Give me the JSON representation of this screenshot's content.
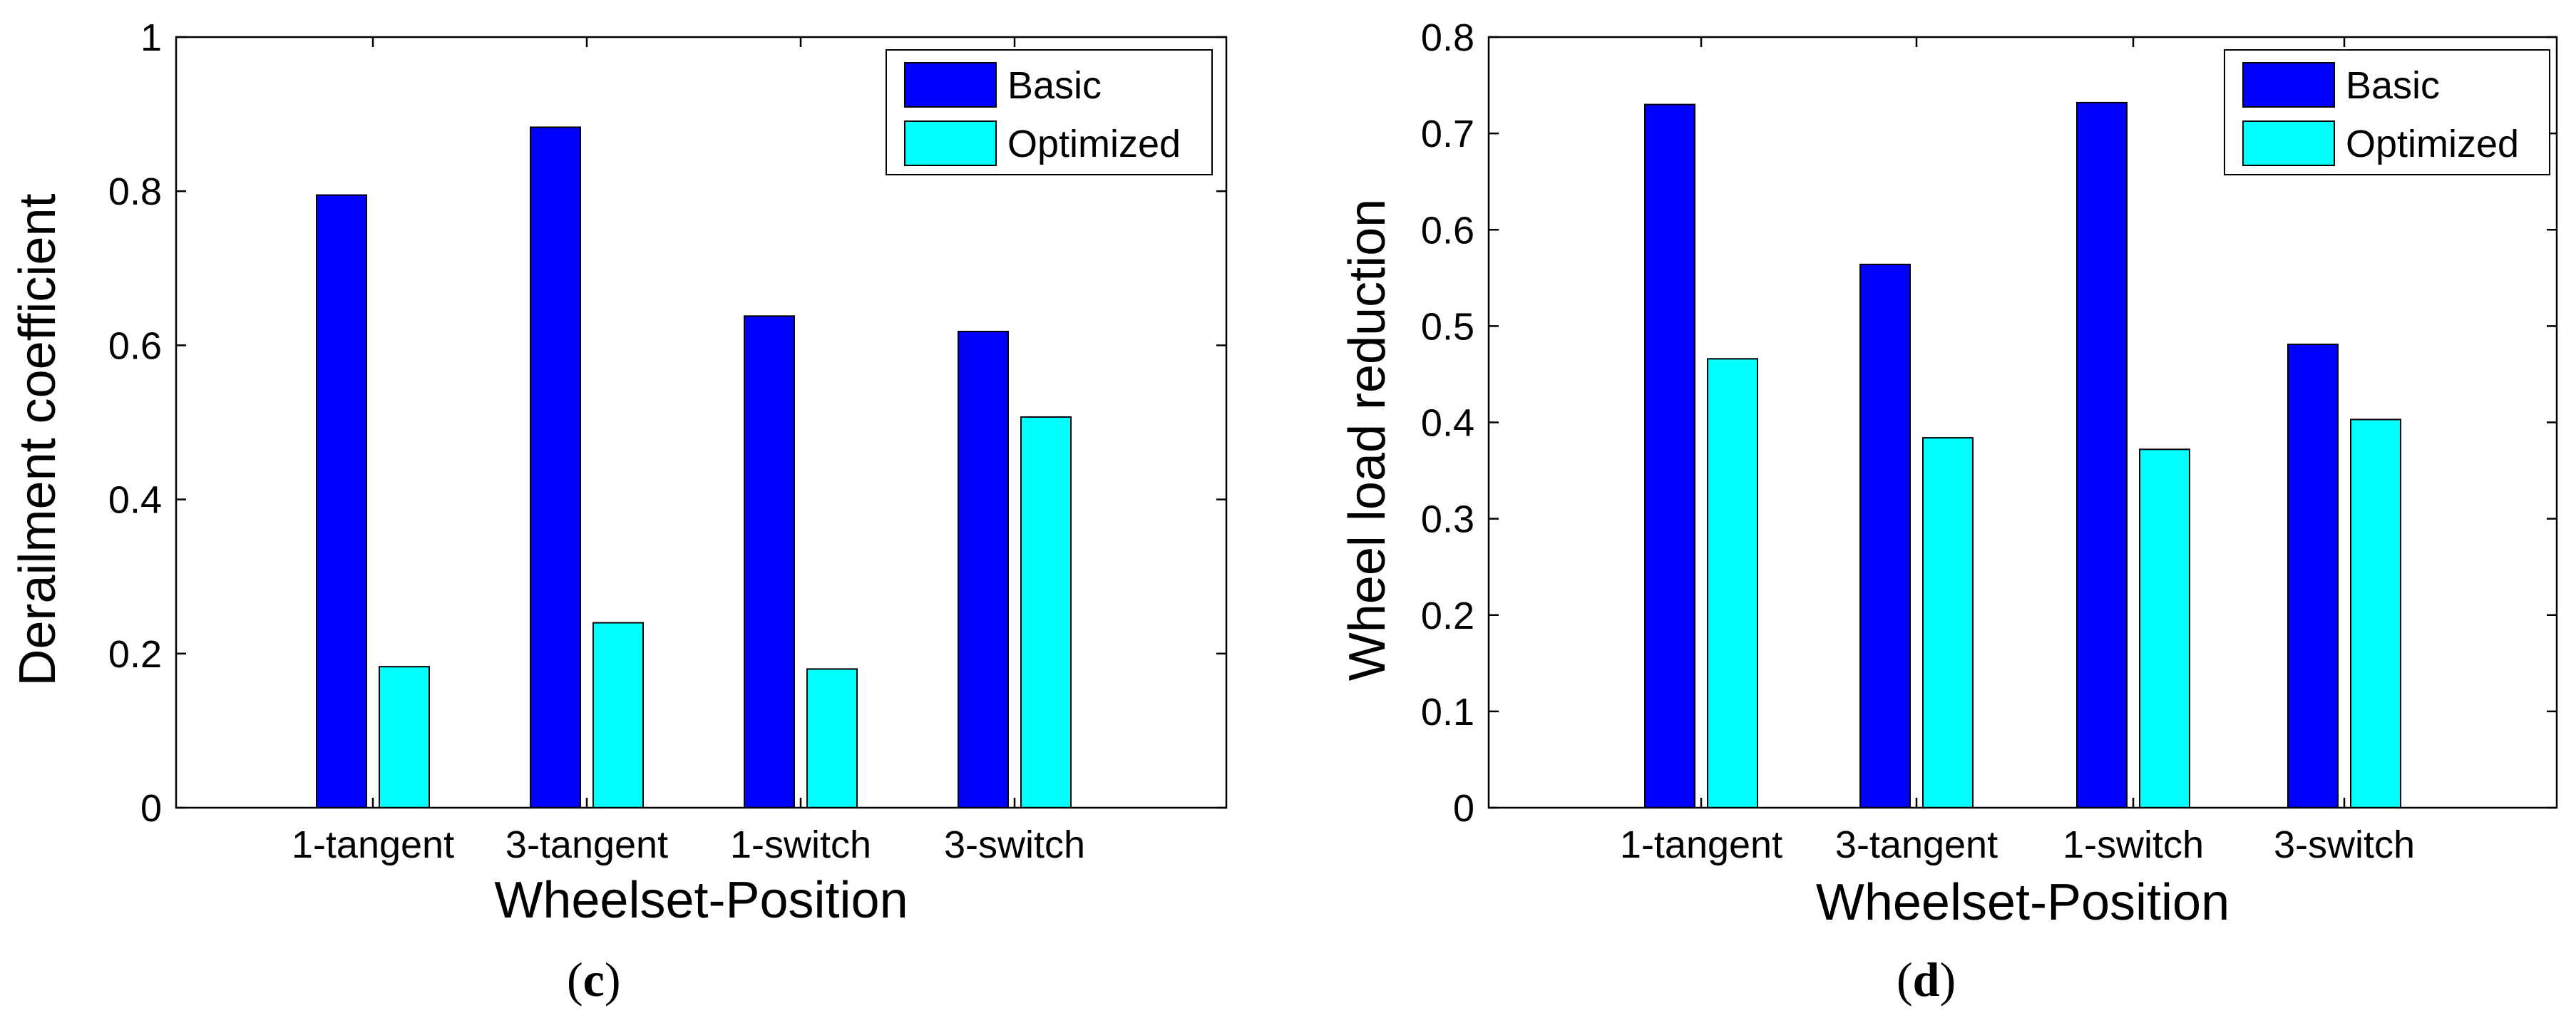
{
  "colors": {
    "basic": "#0000FF",
    "optimized": "#00FFFF",
    "axis": "#000000",
    "edge": "#000000"
  },
  "chart_data": [
    {
      "type": "bar",
      "panel_label": "c",
      "categories": [
        "1-tangent",
        "3-tangent",
        "1-switch",
        "3-switch"
      ],
      "xlabel": "Wheelset-Position",
      "ylabel": "Derailment coefficient",
      "ylim": [
        0,
        1
      ],
      "yticks": [
        0,
        0.2,
        0.4,
        0.6,
        0.8,
        1
      ],
      "ytick_labels": [
        "0",
        "0.2",
        "0.4",
        "0.6",
        "0.8",
        "1"
      ],
      "legend_position": "top-right",
      "grid": false,
      "series": [
        {
          "name": "Basic",
          "values": [
            0.795,
            0.883,
            0.638,
            0.618
          ]
        },
        {
          "name": "Optimized",
          "values": [
            0.183,
            0.24,
            0.18,
            0.507
          ]
        }
      ]
    },
    {
      "type": "bar",
      "panel_label": "d",
      "categories": [
        "1-tangent",
        "3-tangent",
        "1-switch",
        "3-switch"
      ],
      "xlabel": "Wheelset-Position",
      "ylabel": "Wheel load reduction",
      "ylim": [
        0,
        0.8
      ],
      "yticks": [
        0,
        0.1,
        0.2,
        0.3,
        0.4,
        0.5,
        0.6,
        0.7,
        0.8
      ],
      "ytick_labels": [
        "0",
        "0.1",
        "0.2",
        "0.3",
        "0.4",
        "0.5",
        "0.6",
        "0.7",
        "0.8"
      ],
      "legend_position": "top-right",
      "grid": false,
      "series": [
        {
          "name": "Basic",
          "values": [
            0.73,
            0.564,
            0.732,
            0.481
          ]
        },
        {
          "name": "Optimized",
          "values": [
            0.466,
            0.384,
            0.372,
            0.403
          ]
        }
      ]
    }
  ]
}
